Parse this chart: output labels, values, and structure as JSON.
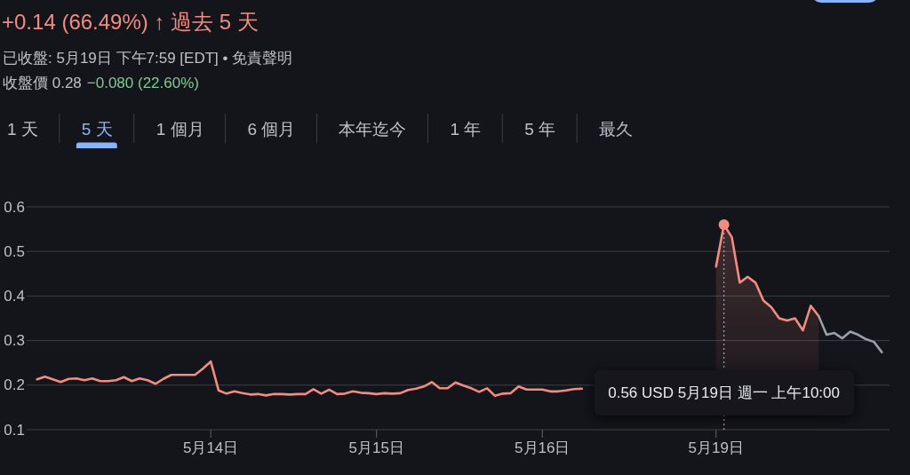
{
  "chart_data": [
    {
      "type": "other",
      "title": "+0.14 (66.49%) ↑ 過去 5 天",
      "subtitle": "已收盤: 5月19日 下午7:59 [EDT] • 免責聲明",
      "annotations": [
        "收盤價 0.28",
        "−0.080 (22.60%)"
      ]
    },
    {
      "type": "other",
      "annotations": [
        "1 天",
        "5 天",
        "1 個月",
        "6 個月",
        "本年迄今",
        "1 年",
        "5 年",
        "最久"
      ]
    },
    {
      "type": "line",
      "grid": "y",
      "ylim": [
        0.1,
        0.6
      ],
      "yticks": [
        0.1,
        0.2,
        0.3,
        0.4,
        0.5,
        0.6
      ],
      "categories": [
        null,
        null,
        null,
        null,
        null,
        null,
        null,
        null,
        null,
        null,
        null,
        null,
        null,
        null,
        null,
        null,
        null,
        null,
        null,
        null,
        null,
        null,
        "5月14日",
        null,
        null,
        null,
        null,
        null,
        null,
        null,
        null,
        null,
        null,
        null,
        null,
        null,
        null,
        null,
        null,
        null,
        null,
        null,
        null,
        "5月15日",
        null,
        null,
        null,
        null,
        null,
        null,
        null,
        null,
        null,
        null,
        null,
        null,
        null,
        null,
        null,
        null,
        null,
        null,
        null,
        null,
        "5月16日",
        null,
        null,
        null,
        null,
        null,
        null,
        null,
        null,
        null,
        null,
        null,
        null,
        null,
        null,
        null,
        null,
        null,
        null,
        null,
        null,
        null,
        "5月19日",
        null,
        null,
        null,
        null,
        null,
        null,
        null,
        null,
        null,
        null,
        null,
        null,
        null,
        null,
        null,
        null,
        null,
        null,
        null,
        null,
        null
      ],
      "series": [
        {
          "type": "line",
          "color": "#f28b82",
          "values": [
            0.213,
            0.219,
            0.213,
            0.207,
            0.214,
            0.215,
            0.211,
            0.215,
            0.209,
            0.209,
            0.211,
            0.218,
            0.209,
            0.215,
            0.211,
            0.203,
            0.214,
            0.223,
            0.223,
            0.223,
            0.223,
            0.237,
            0.253,
            0.188,
            0.181,
            0.186,
            0.182,
            0.179,
            0.18,
            0.177,
            0.18,
            0.18,
            0.179,
            0.18,
            0.18,
            0.191,
            0.181,
            0.19,
            0.18,
            0.181,
            0.186,
            0.183,
            0.182,
            0.18,
            0.182,
            0.181,
            0.182,
            0.189,
            0.192,
            0.197,
            0.207,
            0.193,
            0.193,
            0.206,
            0.199,
            0.193,
            0.185,
            0.193,
            0.176,
            0.181,
            0.182,
            0.197,
            0.19,
            0.19,
            0.19,
            0.186,
            0.186,
            0.188,
            0.191,
            0.192,
            null,
            null,
            null,
            null,
            null,
            null,
            null,
            null,
            null,
            null,
            null,
            null,
            null,
            null,
            null,
            null,
            null,
            null,
            null,
            null,
            null,
            null,
            null,
            null,
            null,
            null,
            null,
            null,
            null,
            null,
            null,
            null,
            null,
            null,
            null,
            null,
            null,
            null
          ]
        },
        {
          "type": "area",
          "color": "#f28b82",
          "values": [
            null,
            null,
            null,
            null,
            null,
            null,
            null,
            null,
            null,
            null,
            null,
            null,
            null,
            null,
            null,
            null,
            null,
            null,
            null,
            null,
            null,
            null,
            null,
            null,
            null,
            null,
            null,
            null,
            null,
            null,
            null,
            null,
            null,
            null,
            null,
            null,
            null,
            null,
            null,
            null,
            null,
            null,
            null,
            null,
            null,
            null,
            null,
            null,
            null,
            null,
            null,
            null,
            null,
            null,
            null,
            null,
            null,
            null,
            null,
            null,
            null,
            null,
            null,
            null,
            null,
            null,
            null,
            null,
            null,
            null,
            null,
            null,
            null,
            null,
            null,
            null,
            null,
            null,
            null,
            null,
            null,
            null,
            null,
            null,
            null,
            null,
            0.466,
            0.56,
            0.532,
            0.43,
            0.443,
            0.43,
            0.39,
            0.375,
            0.35,
            0.345,
            0.35,
            0.323,
            0.378,
            0.355,
            null,
            null,
            null,
            null,
            null,
            null,
            null,
            null
          ]
        },
        {
          "type": "line",
          "color": "#9aa0a6",
          "values": [
            null,
            null,
            null,
            null,
            null,
            null,
            null,
            null,
            null,
            null,
            null,
            null,
            null,
            null,
            null,
            null,
            null,
            null,
            null,
            null,
            null,
            null,
            null,
            null,
            null,
            null,
            null,
            null,
            null,
            null,
            null,
            null,
            null,
            null,
            null,
            null,
            null,
            null,
            null,
            null,
            null,
            null,
            null,
            null,
            null,
            null,
            null,
            null,
            null,
            null,
            null,
            null,
            null,
            null,
            null,
            null,
            null,
            null,
            null,
            null,
            null,
            null,
            null,
            null,
            null,
            null,
            null,
            null,
            null,
            null,
            null,
            null,
            null,
            null,
            null,
            null,
            null,
            null,
            null,
            null,
            null,
            null,
            null,
            null,
            null,
            null,
            null,
            null,
            null,
            null,
            null,
            null,
            null,
            null,
            null,
            null,
            null,
            null,
            null,
            0.355,
            0.313,
            0.317,
            0.305,
            0.32,
            0.313,
            0.303,
            0.297,
            0.274
          ]
        },
        {
          "type": "lollipop",
          "color": "#f28b82",
          "line_style": "dotted",
          "values": [
            null,
            null,
            null,
            null,
            null,
            null,
            null,
            null,
            null,
            null,
            null,
            null,
            null,
            null,
            null,
            null,
            null,
            null,
            null,
            null,
            null,
            null,
            null,
            null,
            null,
            null,
            null,
            null,
            null,
            null,
            null,
            null,
            null,
            null,
            null,
            null,
            null,
            null,
            null,
            null,
            null,
            null,
            null,
            null,
            null,
            null,
            null,
            null,
            null,
            null,
            null,
            null,
            null,
            null,
            null,
            null,
            null,
            null,
            null,
            null,
            null,
            null,
            null,
            null,
            null,
            null,
            null,
            null,
            null,
            null,
            null,
            null,
            null,
            null,
            null,
            null,
            null,
            null,
            null,
            null,
            null,
            null,
            null,
            null,
            null,
            null,
            null,
            0.56,
            null,
            null,
            null,
            null,
            null,
            null,
            null,
            null,
            null,
            null,
            null,
            null,
            null,
            null,
            null,
            null,
            null,
            null,
            null,
            null
          ]
        }
      ],
      "annotations": [
        "0.56 USD 5月19日 週一 上午10:00"
      ]
    }
  ]
}
